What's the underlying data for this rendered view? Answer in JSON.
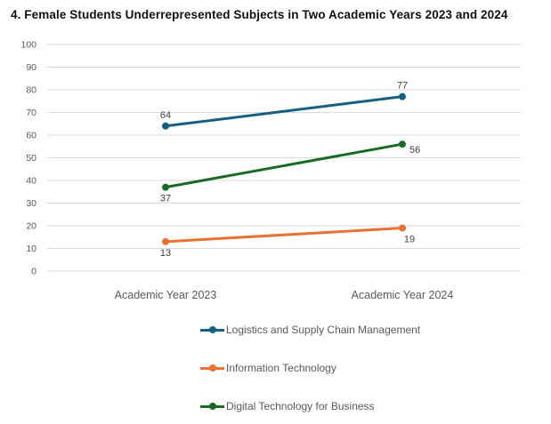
{
  "chart_data": {
    "type": "line",
    "title": "4. Female Students Underrepresented Subjects in Two Academic Years 2023 and 2024",
    "categories": [
      "Academic Year 2023",
      "Academic Year 2024"
    ],
    "series": [
      {
        "name": "Logistics and Supply Chain Management",
        "values": [
          64,
          77
        ],
        "color": "#156082",
        "label_pos": [
          "above",
          "above"
        ]
      },
      {
        "name": "Information Technology",
        "values": [
          13,
          19
        ],
        "color": "#E97132",
        "label_pos": [
          "below",
          "below-right"
        ]
      },
      {
        "name": "Digital Technology for Business",
        "values": [
          37,
          56
        ],
        "color": "#196B24",
        "label_pos": [
          "below",
          "right"
        ]
      }
    ],
    "ylim": [
      0,
      100
    ],
    "ytick_step": 10,
    "yticks": [
      0,
      10,
      20,
      30,
      40,
      50,
      60,
      70,
      80,
      90,
      100
    ],
    "grid": "horizontal",
    "legend_position": "bottom-right",
    "styles": {
      "grid_color": "#D9D9D9",
      "axis_label_color": "#595959",
      "data_label_color": "#404040",
      "title_color": "#111111",
      "legend_text_color": "#595959",
      "background": "#FFFFFF"
    }
  }
}
